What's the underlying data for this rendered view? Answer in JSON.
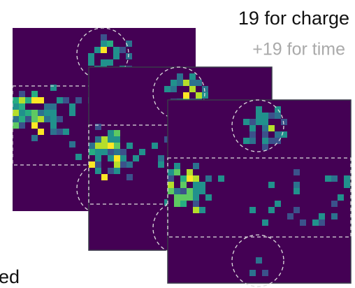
{
  "labels": {
    "charge": "19 for charge",
    "time": "+19 for time",
    "fragment": "ed"
  }
}
